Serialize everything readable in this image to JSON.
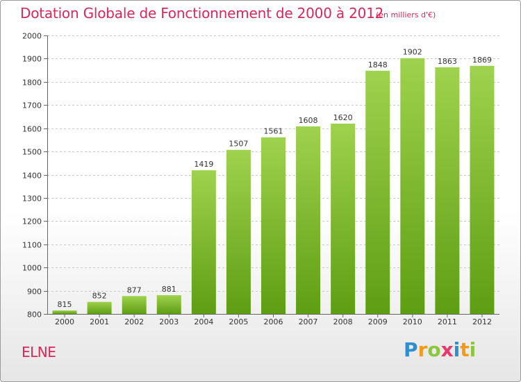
{
  "page": {
    "title": "Dotation Globale de Fonctionnement de 2000 à 2012",
    "subtitle": "(en milliers d'€)",
    "commune": "ELNE",
    "logo": {
      "text": "Proxiti",
      "letters": [
        {
          "char": "P",
          "color": "#2e8fd0"
        },
        {
          "char": "r",
          "color": "#f39a1b"
        },
        {
          "char": "o",
          "color": "#8cc63f"
        },
        {
          "char": "x",
          "color": "#e8386d"
        },
        {
          "char": "i",
          "color": "#2e8fd0"
        },
        {
          "char": "t",
          "color": "#f39a1b"
        },
        {
          "char": "i",
          "color": "#8cc63f"
        }
      ]
    },
    "colors": {
      "accent": "#d9275a",
      "bar_light": "#9fd24e",
      "bar_dark": "#5e9e12",
      "grid": "#c8c8c8"
    }
  },
  "chart_data": {
    "type": "bar",
    "title": "Dotation Globale de Fonctionnement de 2000 à 2012",
    "subtitle": "(en milliers d'€)",
    "xlabel": "",
    "ylabel": "",
    "categories": [
      "2000",
      "2001",
      "2002",
      "2003",
      "2004",
      "2005",
      "2006",
      "2007",
      "2008",
      "2009",
      "2010",
      "2011",
      "2012"
    ],
    "values": [
      815,
      852,
      877,
      881,
      1419,
      1507,
      1561,
      1608,
      1620,
      1848,
      1902,
      1863,
      1869
    ],
    "ylim": [
      800,
      2000
    ],
    "yticks": [
      800,
      900,
      1000,
      1100,
      1200,
      1300,
      1400,
      1500,
      1600,
      1700,
      1800,
      1900,
      2000
    ],
    "grid": true,
    "legend": "none"
  }
}
